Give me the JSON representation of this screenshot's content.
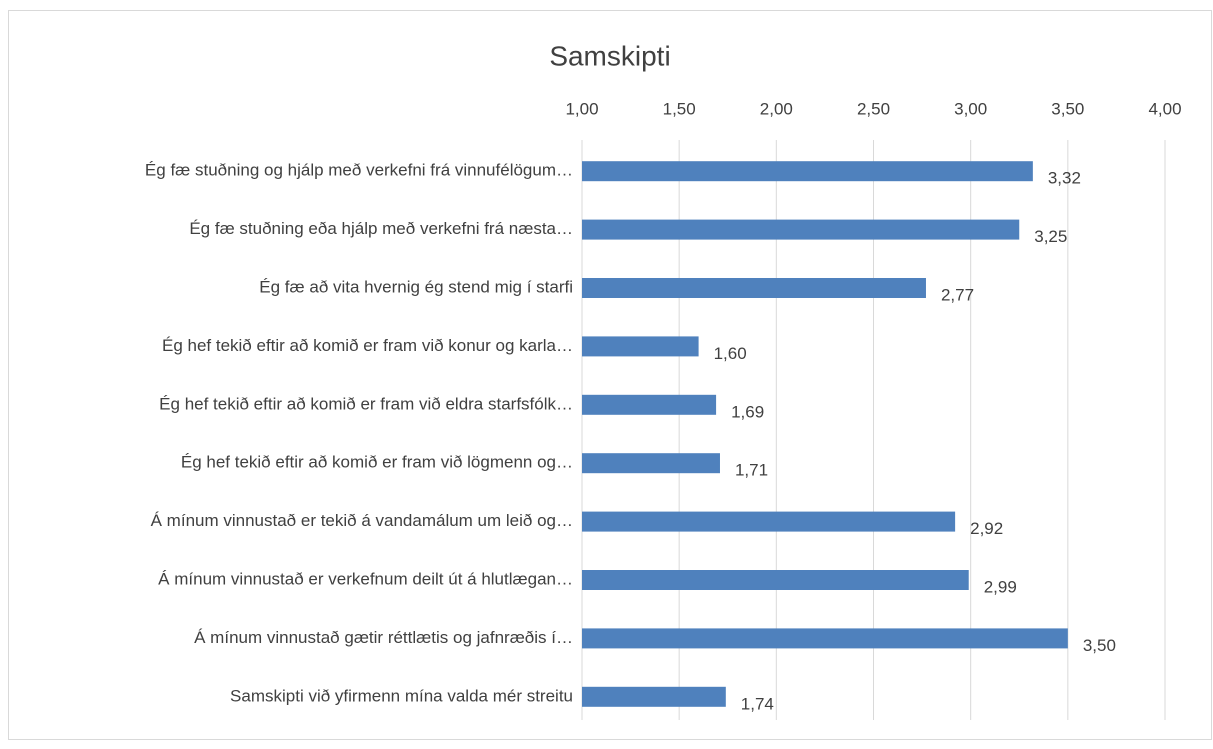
{
  "chart_data": {
    "type": "barh",
    "title": "Samskipti",
    "categories": [
      "Ég fæ stuðning og hjálp með verkefni frá vinnufélögum…",
      "Ég fæ stuðning eða hjálp með verkefni frá næsta…",
      "Ég fæ að vita hvernig ég stend mig í starfi",
      "Ég hef tekið eftir að komið er fram við konur og karla…",
      "Ég hef tekið eftir að komið er fram við eldra starfsfólk…",
      "Ég hef tekið eftir að komið er fram við lögmenn og…",
      "Á mínum vinnustað er tekið á vandamálum um leið og…",
      "Á mínum vinnustað er verkefnum deilt út á hlutlægan…",
      "Á mínum vinnustað gætir réttlætis og jafnræðis í…",
      "Samskipti við yfirmenn mína valda mér streitu"
    ],
    "values": [
      3.32,
      3.25,
      2.77,
      1.6,
      1.69,
      1.71,
      2.92,
      2.99,
      3.5,
      1.74
    ],
    "value_labels": [
      "3,32",
      "3,25",
      "2,77",
      "1,60",
      "1,69",
      "1,71",
      "2,92",
      "2,99",
      "3,50",
      "1,74"
    ],
    "color": "#4f81bd",
    "xlim": [
      1,
      4
    ],
    "xticks": [
      {
        "value": 1,
        "label": "1,00"
      },
      {
        "value": 1.5,
        "label": "1,50"
      },
      {
        "value": 2,
        "label": "2,00"
      },
      {
        "value": 2.5,
        "label": "2,50"
      },
      {
        "value": 3,
        "label": "3,00"
      },
      {
        "value": 3.5,
        "label": "3,50"
      },
      {
        "value": 4,
        "label": "4,00"
      }
    ],
    "grid": true
  }
}
